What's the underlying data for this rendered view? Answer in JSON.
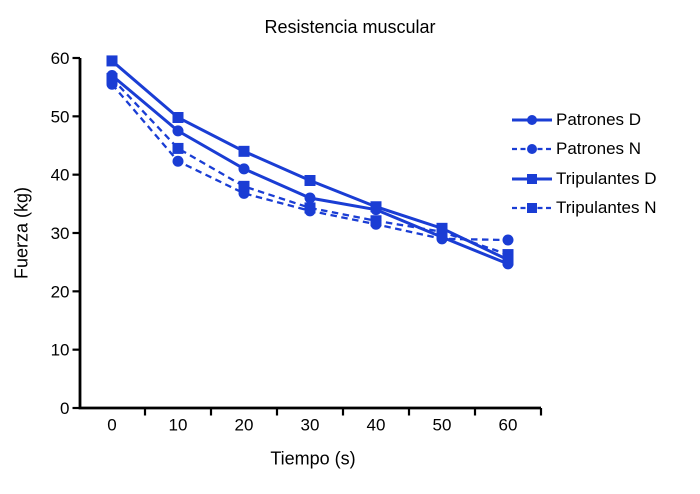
{
  "figure": {
    "title": "Resistencia muscular",
    "xlabel": "Tiempo (s)",
    "ylabel": "Fuerza (kg)"
  },
  "chart_data": {
    "type": "line",
    "title": "Resistencia muscular",
    "xlabel": "Tiempo (s)",
    "ylabel": "Fuerza (kg)",
    "x": [
      0,
      10,
      20,
      30,
      40,
      50,
      60
    ],
    "x_tick_labels": [
      "0",
      "10",
      "20",
      "30",
      "40",
      "50",
      "60"
    ],
    "y_ticks": [
      0,
      10,
      20,
      30,
      40,
      50,
      60
    ],
    "y_tick_labels": [
      "0",
      "10",
      "20",
      "30",
      "40",
      "50",
      "60"
    ],
    "xlim": [
      0,
      60
    ],
    "ylim": [
      0,
      60
    ],
    "grid": false,
    "legend_position": "right",
    "colors": {
      "series_blue": "#1a3dd4",
      "axis": "#000000",
      "text": "#000000",
      "background": "#ffffff"
    },
    "series": [
      {
        "name": "Patrones D",
        "marker": "circle",
        "line": "solid",
        "color": "#1a3dd4",
        "values": [
          57.0,
          47.5,
          41.0,
          36.0,
          34.0,
          29.3,
          24.7
        ]
      },
      {
        "name": "Patrones N",
        "marker": "circle",
        "line": "dashed",
        "color": "#1a3dd4",
        "values": [
          55.5,
          42.3,
          36.8,
          33.8,
          31.5,
          29.0,
          28.8
        ]
      },
      {
        "name": "Tripulantes D",
        "marker": "square",
        "line": "solid",
        "color": "#1a3dd4",
        "values": [
          59.5,
          49.8,
          44.0,
          39.0,
          34.5,
          30.8,
          25.4
        ]
      },
      {
        "name": "Tripulantes N",
        "marker": "square",
        "line": "dashed",
        "color": "#1a3dd4",
        "values": [
          56.5,
          44.5,
          38.0,
          34.3,
          32.1,
          30.2,
          26.3
        ]
      }
    ]
  }
}
